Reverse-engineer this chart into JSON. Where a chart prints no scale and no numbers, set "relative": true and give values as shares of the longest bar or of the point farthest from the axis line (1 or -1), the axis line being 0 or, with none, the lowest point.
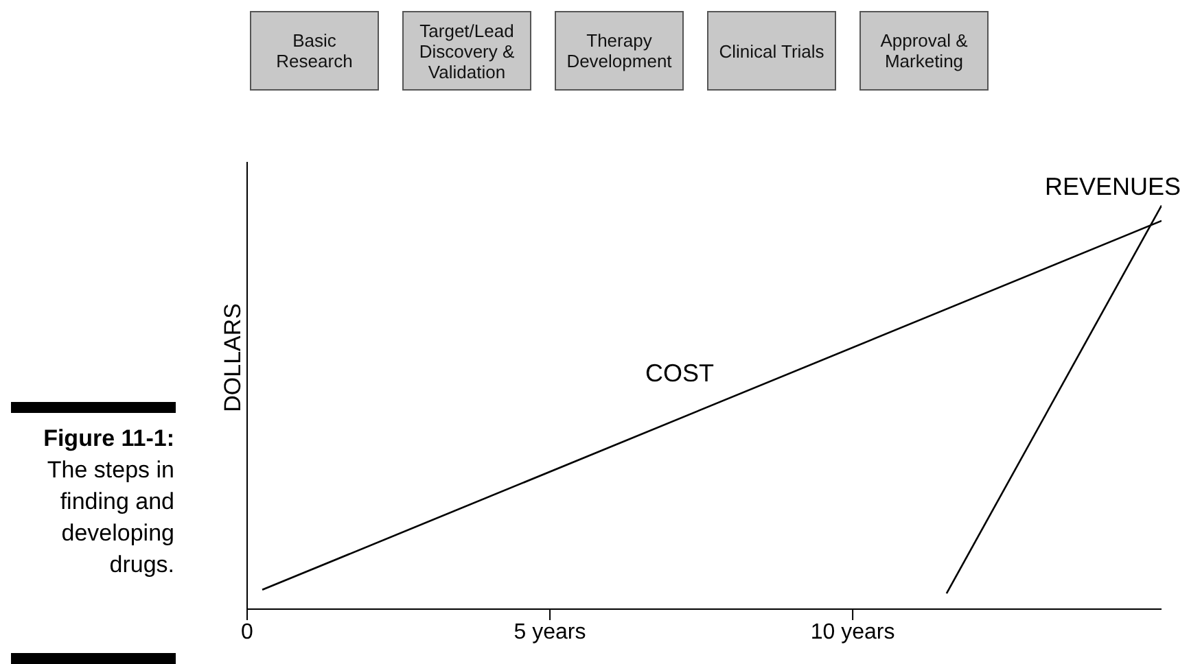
{
  "chart_data": {
    "type": "line",
    "relative": true,
    "ylabel": "DOLLARS",
    "xlim": [
      0,
      15.1
    ],
    "xticks": [
      0,
      {
        "value": 5,
        "label": "5 years"
      },
      {
        "value": 10,
        "label": "10 years"
      }
    ],
    "series": [
      {
        "name": "COST",
        "color": "#000000",
        "x": [
          0.25,
          15.1
        ],
        "values": [
          0.048,
          0.962
        ]
      },
      {
        "name": "REVENUES",
        "color": "#000000",
        "x": [
          11.55,
          15.1
        ],
        "values": [
          0.039,
          1
        ]
      }
    ],
    "annotations": [
      "Basic Research",
      "Target/Lead Discovery & Validation",
      "Therapy Development",
      "Clinical Trials",
      "Approval & Marketing",
      "Figure 11-1:",
      "The steps in finding and developing drugs."
    ],
    "grid": false,
    "legend": false,
    "marker": "none",
    "line_style": "solid"
  }
}
